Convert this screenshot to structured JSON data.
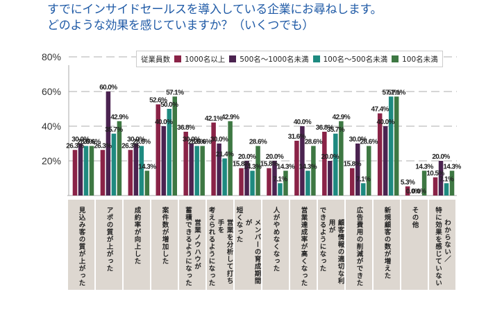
{
  "title": {
    "line1": "すでにインサイドセールスを導入している企業にお尋ねします。",
    "line2": "どのような効果を感じていますか？（いくつでも）"
  },
  "chart_data": {
    "type": "bar",
    "title": "すでにインサイドセールスを導入している企業にお尋ねします。どのような効果を感じていますか？（いくつでも）",
    "xlabel": "",
    "ylabel": "",
    "ylim": [
      0,
      80
    ],
    "yticks": [
      20,
      40,
      60,
      80
    ],
    "ytick_labels": [
      "20%",
      "40%",
      "60%",
      "80%"
    ],
    "grid": true,
    "legend_title": "従業員数",
    "legend_position": "top-right",
    "categories": [
      [
        "見込み客の質が上がった"
      ],
      [
        "アポの質が上がった"
      ],
      [
        "成約率が向上した"
      ],
      [
        "案件数が増加した"
      ],
      [
        "営業ノウハウが",
        "蓄積できるようになった"
      ],
      [
        "営業を分析して打ち手を",
        "考えられるようになった"
      ],
      [
        "メンバーの育成期間が",
        "短くなった"
      ],
      [
        "人がやめなくなった"
      ],
      [
        "営業達成率が高くなった"
      ],
      [
        "顧客情報の適切な利用が",
        "できるようになった"
      ],
      [
        "広告費用の削減ができた"
      ],
      [
        "新規顧客の数が増えた"
      ],
      [
        "その他"
      ],
      [
        "わからない／",
        "特に効果を感じていない"
      ]
    ],
    "series": [
      {
        "name": "1000名以上",
        "color": "#8a2347",
        "values": [
          26.3,
          26.3,
          26.3,
          52.6,
          36.8,
          42.1,
          15.8,
          15.8,
          31.6,
          36.8,
          15.8,
          47.4,
          5.3,
          10.5
        ]
      },
      {
        "name": "500名～1000名未満",
        "color": "#4b2350",
        "values": [
          30.0,
          60.0,
          30.0,
          40.0,
          30.0,
          30.0,
          20.0,
          20.0,
          40.0,
          20.0,
          30.0,
          40.0,
          0.0,
          20.0
        ]
      },
      {
        "name": "100名～500名未満",
        "color": "#1e8a80",
        "values": [
          28.6,
          35.7,
          28.6,
          50.0,
          28.6,
          21.4,
          14.3,
          7.1,
          14.3,
          35.7,
          7.1,
          57.1,
          0.0,
          7.1
        ]
      },
      {
        "name": "100名未満",
        "color": "#3e7843",
        "values": [
          28.6,
          42.9,
          14.3,
          57.1,
          28.6,
          42.9,
          28.6,
          14.3,
          28.6,
          42.9,
          28.6,
          57.1,
          14.3,
          14.3
        ]
      }
    ],
    "value_suffix": "%"
  }
}
